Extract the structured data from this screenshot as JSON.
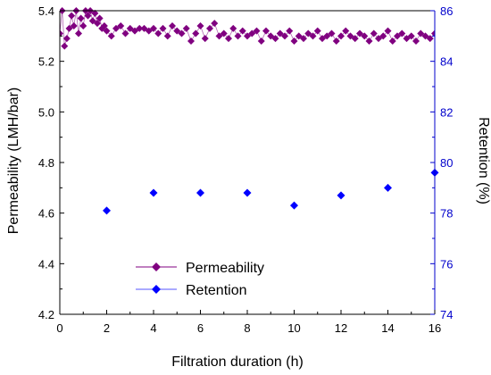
{
  "chart_data": {
    "type": "scatter",
    "xlabel": "Filtration duration (h)",
    "ylabel_left": "Permeability (LMH/bar)",
    "ylabel_right": "Retention (%)",
    "xlim": [
      0,
      16
    ],
    "ylim_left": [
      4.2,
      5.4
    ],
    "ylim_right": [
      74,
      86
    ],
    "x_ticks": [
      "0",
      "2",
      "4",
      "6",
      "8",
      "10",
      "12",
      "14",
      "16"
    ],
    "y_ticks_left": [
      "4.2",
      "4.4",
      "4.6",
      "4.8",
      "5.0",
      "5.2",
      "5.4"
    ],
    "y_ticks_right": [
      "74",
      "76",
      "78",
      "80",
      "82",
      "84",
      "86"
    ],
    "grid": false,
    "legend_position": "bottom-left",
    "colors": {
      "permeability": "#800080",
      "retention": "#0000ff",
      "right_axis": "#0000cc"
    },
    "series": [
      {
        "name": "Permeability",
        "axis": "left",
        "marker": "diamond",
        "line": true,
        "x": [
          0.0,
          0.1,
          0.2,
          0.3,
          0.4,
          0.5,
          0.6,
          0.7,
          0.8,
          0.9,
          1.0,
          1.1,
          1.2,
          1.3,
          1.4,
          1.5,
          1.6,
          1.7,
          1.8,
          1.9,
          2.0,
          2.2,
          2.4,
          2.6,
          2.8,
          3.0,
          3.2,
          3.4,
          3.6,
          3.8,
          4.0,
          4.2,
          4.4,
          4.6,
          4.8,
          5.0,
          5.2,
          5.4,
          5.6,
          5.8,
          6.0,
          6.2,
          6.4,
          6.6,
          6.8,
          7.0,
          7.2,
          7.4,
          7.6,
          7.8,
          8.0,
          8.2,
          8.4,
          8.6,
          8.8,
          9.0,
          9.2,
          9.4,
          9.6,
          9.8,
          10.0,
          10.2,
          10.4,
          10.6,
          10.8,
          11.0,
          11.2,
          11.4,
          11.6,
          11.8,
          12.0,
          12.2,
          12.4,
          12.6,
          12.8,
          13.0,
          13.2,
          13.4,
          13.6,
          13.8,
          14.0,
          14.2,
          14.4,
          14.6,
          14.8,
          15.0,
          15.2,
          15.4,
          15.6,
          15.8,
          16.0
        ],
        "y": [
          5.31,
          5.4,
          5.26,
          5.29,
          5.33,
          5.38,
          5.34,
          5.4,
          5.31,
          5.37,
          5.34,
          5.4,
          5.38,
          5.4,
          5.36,
          5.39,
          5.35,
          5.37,
          5.33,
          5.34,
          5.32,
          5.3,
          5.33,
          5.34,
          5.31,
          5.33,
          5.32,
          5.33,
          5.33,
          5.32,
          5.33,
          5.31,
          5.33,
          5.3,
          5.34,
          5.32,
          5.31,
          5.33,
          5.28,
          5.31,
          5.34,
          5.29,
          5.33,
          5.35,
          5.3,
          5.31,
          5.29,
          5.33,
          5.3,
          5.32,
          5.3,
          5.31,
          5.32,
          5.28,
          5.32,
          5.3,
          5.29,
          5.31,
          5.3,
          5.32,
          5.28,
          5.3,
          5.29,
          5.31,
          5.3,
          5.32,
          5.29,
          5.3,
          5.31,
          5.28,
          5.3,
          5.32,
          5.3,
          5.29,
          5.31,
          5.3,
          5.28,
          5.31,
          5.29,
          5.3,
          5.32,
          5.28,
          5.3,
          5.31,
          5.29,
          5.3,
          5.28,
          5.31,
          5.3,
          5.29,
          5.31
        ]
      },
      {
        "name": "Retention",
        "axis": "right",
        "marker": "diamond",
        "line": false,
        "x": [
          2,
          4,
          6,
          8,
          10,
          12,
          14,
          16
        ],
        "y": [
          78.1,
          78.8,
          78.8,
          78.8,
          78.3,
          78.7,
          79.0,
          79.6
        ]
      }
    ]
  }
}
